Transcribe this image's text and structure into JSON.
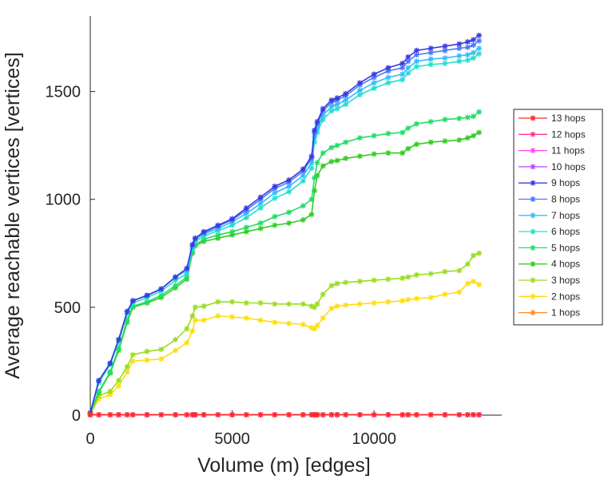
{
  "chart_data": {
    "type": "line",
    "title": "",
    "xlabel": "Volume (m) [edges]",
    "ylabel": "Average reachable vertices [vertices]",
    "xlim": [
      0,
      14500
    ],
    "ylim": [
      0,
      1850
    ],
    "x_ticks": [
      0,
      5000,
      10000
    ],
    "y_ticks": [
      0,
      500,
      1000,
      1500
    ],
    "grid": false,
    "legend_position": "right",
    "marker": "asterisk",
    "x": [
      0,
      300,
      700,
      1000,
      1300,
      1500,
      2000,
      2500,
      3000,
      3400,
      3600,
      3700,
      4000,
      4500,
      5000,
      5500,
      6000,
      6500,
      7000,
      7500,
      7800,
      7900,
      8000,
      8200,
      8500,
      8700,
      9000,
      9500,
      10000,
      10500,
      11000,
      11200,
      11500,
      12000,
      12500,
      13000,
      13300,
      13500,
      13700
    ],
    "series": [
      {
        "name": "13 hops",
        "color": "#ff2a2a",
        "values": [
          2,
          2,
          2,
          2,
          2,
          2,
          2,
          2,
          2,
          2,
          2,
          2,
          2,
          2,
          2,
          2,
          2,
          2,
          2,
          2,
          2,
          2,
          2,
          2,
          2,
          2,
          2,
          2,
          2,
          2,
          2,
          2,
          2,
          2,
          2,
          2,
          2,
          2,
          2
        ]
      },
      {
        "name": "12 hops",
        "color": "#ff3399",
        "values": [
          2,
          2,
          2,
          2,
          2,
          2,
          2,
          2,
          2,
          2,
          2,
          2,
          2,
          2,
          2,
          2,
          2,
          2,
          2,
          2,
          2,
          2,
          2,
          2,
          2,
          2,
          2,
          2,
          2,
          2,
          2,
          2,
          2,
          2,
          2,
          2,
          2,
          2,
          2
        ]
      },
      {
        "name": "11 hops",
        "color": "#ff44ee",
        "values": [
          2,
          2,
          2,
          2,
          2,
          2,
          2,
          2,
          2,
          2,
          2,
          2,
          2,
          2,
          2,
          2,
          2,
          2,
          2,
          2,
          2,
          2,
          2,
          2,
          2,
          2,
          2,
          2,
          2,
          2,
          2,
          2,
          2,
          2,
          2,
          2,
          2,
          2,
          2
        ]
      },
      {
        "name": "10 hops",
        "color": "#b844ff",
        "values": [
          2,
          2,
          2,
          2,
          2,
          2,
          2,
          2,
          2,
          2,
          2,
          2,
          2,
          2,
          2,
          2,
          2,
          2,
          2,
          2,
          2,
          2,
          2,
          2,
          2,
          2,
          2,
          2,
          2,
          2,
          2,
          2,
          2,
          2,
          2,
          2,
          2,
          2,
          2
        ]
      },
      {
        "name": "9 hops",
        "color": "#3a3add",
        "values": [
          10,
          160,
          240,
          350,
          480,
          530,
          555,
          585,
          640,
          680,
          790,
          820,
          850,
          880,
          910,
          960,
          1010,
          1060,
          1090,
          1140,
          1200,
          1320,
          1360,
          1420,
          1460,
          1470,
          1490,
          1540,
          1580,
          1610,
          1630,
          1660,
          1690,
          1700,
          1710,
          1720,
          1730,
          1740,
          1760
        ]
      },
      {
        "name": "8 hops",
        "color": "#4a78ff",
        "values": [
          10,
          160,
          240,
          350,
          480,
          530,
          555,
          585,
          640,
          680,
          790,
          820,
          845,
          875,
          905,
          950,
          1000,
          1050,
          1080,
          1130,
          1190,
          1310,
          1350,
          1410,
          1450,
          1460,
          1480,
          1530,
          1565,
          1595,
          1610,
          1640,
          1670,
          1680,
          1690,
          1700,
          1705,
          1715,
          1735
        ]
      },
      {
        "name": "7 hops",
        "color": "#33bbff",
        "values": [
          10,
          160,
          240,
          350,
          480,
          530,
          555,
          585,
          640,
          670,
          780,
          815,
          840,
          865,
          895,
          935,
          980,
          1030,
          1060,
          1110,
          1170,
          1290,
          1330,
          1390,
          1430,
          1440,
          1460,
          1505,
          1540,
          1565,
          1580,
          1610,
          1640,
          1650,
          1655,
          1665,
          1670,
          1680,
          1700
        ]
      },
      {
        "name": "6 hops",
        "color": "#22e0cc",
        "values": [
          10,
          150,
          235,
          340,
          470,
          520,
          545,
          575,
          625,
          655,
          770,
          805,
          830,
          855,
          880,
          915,
          960,
          1005,
          1035,
          1085,
          1145,
          1265,
          1310,
          1370,
          1410,
          1420,
          1440,
          1485,
          1515,
          1540,
          1555,
          1585,
          1615,
          1625,
          1630,
          1640,
          1645,
          1655,
          1675
        ]
      },
      {
        "name": "5 hops",
        "color": "#22dd66",
        "values": [
          10,
          110,
          200,
          310,
          440,
          505,
          525,
          555,
          600,
          640,
          760,
          790,
          815,
          835,
          850,
          870,
          890,
          920,
          940,
          970,
          1000,
          1100,
          1170,
          1215,
          1240,
          1250,
          1265,
          1285,
          1295,
          1305,
          1310,
          1330,
          1350,
          1360,
          1370,
          1375,
          1380,
          1385,
          1405
        ]
      },
      {
        "name": "4 hops",
        "color": "#33cc22",
        "values": [
          10,
          105,
          195,
          300,
          430,
          500,
          520,
          545,
          590,
          630,
          750,
          785,
          805,
          820,
          835,
          850,
          865,
          880,
          890,
          905,
          930,
          1040,
          1110,
          1155,
          1175,
          1180,
          1190,
          1200,
          1210,
          1215,
          1215,
          1235,
          1255,
          1265,
          1270,
          1275,
          1285,
          1295,
          1310
        ]
      },
      {
        "name": "3 hops",
        "color": "#99dd22",
        "values": [
          5,
          90,
          110,
          160,
          225,
          280,
          295,
          305,
          350,
          400,
          460,
          500,
          505,
          525,
          525,
          520,
          520,
          515,
          515,
          515,
          505,
          500,
          515,
          560,
          600,
          610,
          615,
          620,
          625,
          630,
          635,
          640,
          650,
          655,
          665,
          670,
          700,
          740,
          750
        ]
      },
      {
        "name": "2 hops",
        "color": "#ffdd11",
        "values": [
          5,
          75,
          95,
          135,
          200,
          250,
          255,
          260,
          300,
          335,
          390,
          440,
          440,
          460,
          455,
          450,
          440,
          430,
          425,
          420,
          405,
          400,
          415,
          450,
          495,
          505,
          510,
          515,
          520,
          525,
          530,
          535,
          540,
          545,
          560,
          570,
          610,
          620,
          605
        ]
      },
      {
        "name": "1 hops",
        "color": "#ff8a22",
        "values": [
          1,
          1,
          1,
          1,
          1,
          1,
          1,
          1,
          1,
          1,
          1,
          1,
          1,
          1,
          1,
          1,
          1,
          1,
          1,
          1,
          1,
          1,
          1,
          1,
          1,
          1,
          1,
          1,
          1,
          1,
          1,
          1,
          1,
          1,
          1,
          1,
          1,
          1,
          1
        ]
      }
    ]
  }
}
